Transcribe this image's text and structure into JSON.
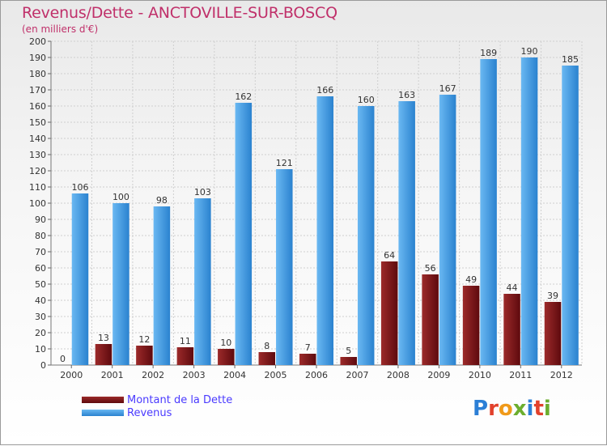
{
  "header": {
    "title": "Revenus/Dette - ANCTOVILLE-SUR-BOSCQ",
    "subtitle": "(en milliers d'€)"
  },
  "colors": {
    "dette": "#7a1418",
    "revenus": "#3d9be6",
    "title": "#c0306a",
    "legend_text": "#4a3aff",
    "grid": "#cfcfcf"
  },
  "legend": {
    "items": [
      {
        "label": "Montant de la Dette",
        "color": "#7a1418"
      },
      {
        "label": "Revenus",
        "color": "#3d9be6"
      }
    ]
  },
  "brand": {
    "text": "Proxiti",
    "letter_colors": [
      "#2c7fd6",
      "#e2412c",
      "#f09a1a",
      "#6cae2e",
      "#2c7fd6",
      "#e2412c",
      "#6cae2e"
    ]
  },
  "chart_data": {
    "type": "bar",
    "title": "Revenus/Dette - ANCTOVILLE-SUR-BOSCQ",
    "subtitle": "(en milliers d'€)",
    "xlabel": "",
    "ylabel": "",
    "categories": [
      "2000",
      "2001",
      "2002",
      "2003",
      "2004",
      "2005",
      "2006",
      "2007",
      "2008",
      "2009",
      "2010",
      "2011",
      "2012"
    ],
    "series": [
      {
        "name": "Montant de la Dette",
        "values": [
          0,
          13,
          12,
          11,
          10,
          8,
          7,
          5,
          64,
          56,
          49,
          44,
          39
        ]
      },
      {
        "name": "Revenus",
        "values": [
          106,
          100,
          98,
          103,
          162,
          121,
          166,
          160,
          163,
          167,
          189,
          190,
          185
        ]
      }
    ],
    "ylim": [
      0,
      200
    ],
    "ytick_step": 10,
    "grid": true,
    "legend_placement": "bottom-left"
  }
}
